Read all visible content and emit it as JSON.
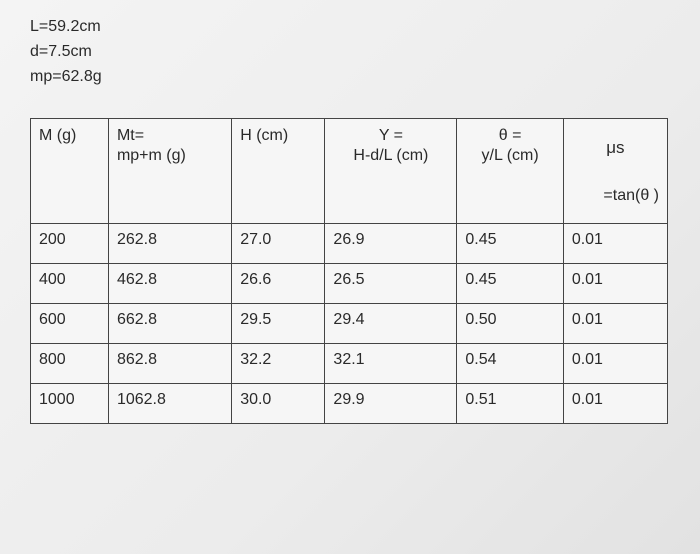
{
  "header": {
    "lines": [
      "L=59.2cm",
      "d=7.5cm",
      "mp=62.8g"
    ]
  },
  "table": {
    "columns": [
      [
        "M (g)"
      ],
      [
        "Mt=",
        "mp+m (g)"
      ],
      [
        "H (cm)"
      ],
      [
        "Y =",
        "H-d/L (cm)"
      ],
      [
        "θ =",
        "y/L (cm)"
      ],
      [
        "μs",
        "=tan(θ )"
      ]
    ],
    "rows": [
      [
        "200",
        "262.8",
        "27.0",
        "26.9",
        "0.45",
        "0.01"
      ],
      [
        "400",
        "462.8",
        "26.6",
        "26.5",
        "0.45",
        "0.01"
      ],
      [
        "600",
        "662.8",
        "29.5",
        "29.4",
        "0.50",
        "0.01"
      ],
      [
        "800",
        "862.8",
        "32.2",
        "32.1",
        "0.54",
        "0.01"
      ],
      [
        "1000",
        "1062.8",
        "30.0",
        "29.9",
        "0.51",
        "0.01"
      ]
    ]
  }
}
